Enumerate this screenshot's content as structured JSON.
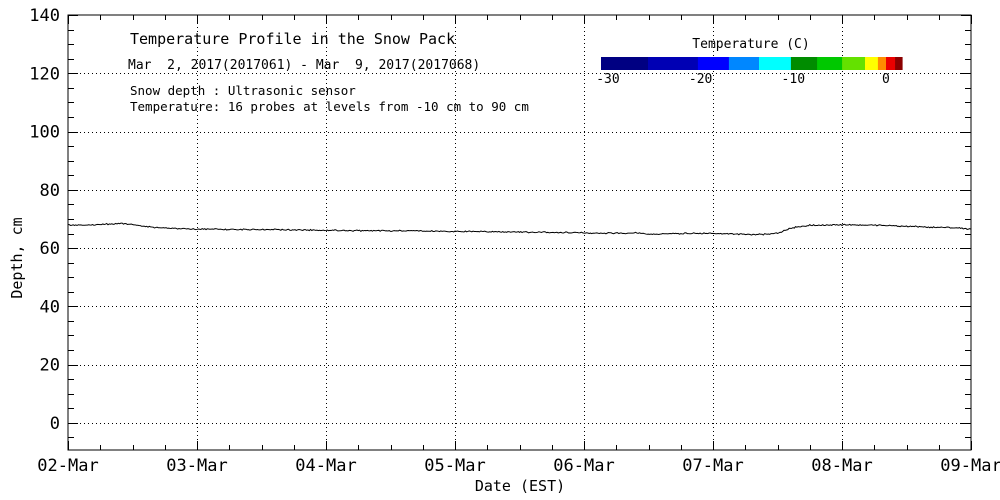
{
  "page": {
    "background": "#ffffff",
    "foreground": "#000000"
  },
  "chart_data": {
    "type": "line",
    "title": "Temperature Profile in the Snow Pack",
    "subtitle": "Mar  2, 2017(2017061) - Mar  9, 2017(2017068)",
    "annotations": {
      "line1": "Snow depth : Ultrasonic sensor",
      "line2": "Temperature: 16 probes at levels from -10 cm to 90 cm"
    },
    "xlabel": "Date (EST)",
    "ylabel": "Depth, cm",
    "x_axis": {
      "tick_labels": [
        "02-Mar",
        "03-Mar",
        "04-Mar",
        "05-Mar",
        "06-Mar",
        "07-Mar",
        "08-Mar",
        "09-Mar"
      ],
      "major_ticks_days": [
        0,
        1,
        2,
        3,
        4,
        5,
        6,
        7
      ],
      "minor_step_days": 0.25,
      "range_days": [
        0,
        7
      ]
    },
    "y_axis": {
      "ticks": [
        0,
        20,
        40,
        60,
        80,
        100,
        120,
        140
      ],
      "minor_step": 5,
      "range": [
        -9.3,
        140
      ]
    },
    "grid": {
      "style": "dotted",
      "color": "#000000"
    },
    "series": [
      {
        "name": "snow-depth-ultrasonic",
        "color": "#000000",
        "noise_amplitude_cm": 0.28,
        "points": [
          [
            0.0,
            68.0
          ],
          [
            0.1,
            67.9
          ],
          [
            0.22,
            68.0
          ],
          [
            0.32,
            68.3
          ],
          [
            0.42,
            68.5
          ],
          [
            0.5,
            68.1
          ],
          [
            0.6,
            67.4
          ],
          [
            0.72,
            66.9
          ],
          [
            0.85,
            66.7
          ],
          [
            1.0,
            66.5
          ],
          [
            1.3,
            66.4
          ],
          [
            1.6,
            66.3
          ],
          [
            1.9,
            66.15
          ],
          [
            2.2,
            66.0
          ],
          [
            2.5,
            65.9
          ],
          [
            2.8,
            65.85
          ],
          [
            3.1,
            65.7
          ],
          [
            3.4,
            65.55
          ],
          [
            3.7,
            65.4
          ],
          [
            4.0,
            65.25
          ],
          [
            4.2,
            65.1
          ],
          [
            4.4,
            65.2
          ],
          [
            4.55,
            64.7
          ],
          [
            4.65,
            64.9
          ],
          [
            4.8,
            65.1
          ],
          [
            5.0,
            65.0
          ],
          [
            5.15,
            64.9
          ],
          [
            5.3,
            64.6
          ],
          [
            5.42,
            64.8
          ],
          [
            5.5,
            65.1
          ],
          [
            5.57,
            66.3
          ],
          [
            5.65,
            67.3
          ],
          [
            5.75,
            67.8
          ],
          [
            5.9,
            67.9
          ],
          [
            6.1,
            68.0
          ],
          [
            6.3,
            67.8
          ],
          [
            6.5,
            67.5
          ],
          [
            6.7,
            67.2
          ],
          [
            6.85,
            67.0
          ],
          [
            7.0,
            66.5
          ]
        ]
      }
    ],
    "colorbar": {
      "title": "Temperature (C)",
      "tick_values": [
        -30,
        -20,
        -10,
        0
      ],
      "range": [
        -30.75,
        1.73
      ],
      "segments": [
        {
          "color": "#000082",
          "to": 0.156
        },
        {
          "color": "#0000B4",
          "to": 0.322
        },
        {
          "color": "#0000FF",
          "to": 0.425
        },
        {
          "color": "#0087FF",
          "to": 0.525
        },
        {
          "color": "#00FFFF",
          "to": 0.631
        },
        {
          "color": "#008C00",
          "to": 0.718
        },
        {
          "color": "#00C800",
          "to": 0.801
        },
        {
          "color": "#64E100",
          "to": 0.877
        },
        {
          "color": "#FFFF00",
          "to": 0.92
        },
        {
          "color": "#FF8C00",
          "to": 0.947
        },
        {
          "color": "#EB0000",
          "to": 0.977
        },
        {
          "color": "#8B0000",
          "to": 1.0
        }
      ]
    }
  }
}
